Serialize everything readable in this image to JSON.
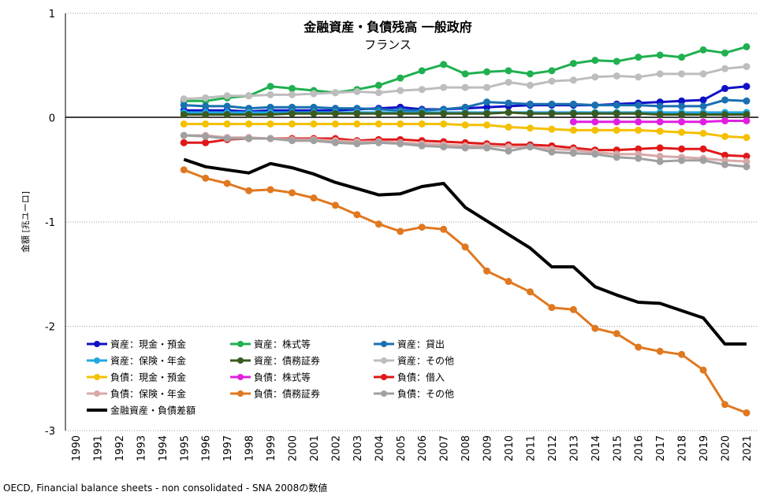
{
  "chart_data": {
    "type": "line",
    "title": "金融資産・負債残高 一般政府",
    "subtitle": "フランス",
    "ylabel": "金額 [兆ユーロ]",
    "xlabel": "",
    "source": "OECD, Financial balance sheets - non consolidated - SNA 2008の数値",
    "ylim": [
      -3,
      1
    ],
    "yticks": [
      1,
      0,
      -1,
      -2,
      -3
    ],
    "yticklabels": [
      "1",
      "0",
      "-1",
      "-2",
      "-3"
    ],
    "grid": true,
    "legend_position": "bottom-left",
    "x": [
      "1990",
      "1991",
      "1992",
      "1993",
      "1994",
      "1995",
      "1996",
      "1997",
      "1998",
      "1999",
      "2000",
      "2001",
      "2002",
      "2003",
      "2004",
      "2005",
      "2006",
      "2007",
      "2008",
      "2009",
      "2010",
      "2011",
      "2012",
      "2013",
      "2014",
      "2015",
      "2016",
      "2017",
      "2018",
      "2019",
      "2020",
      "2021"
    ],
    "series": [
      {
        "name": "資産：現金・預金",
        "color": "#1010c8",
        "width": 3,
        "marker": true,
        "values": [
          null,
          null,
          null,
          null,
          null,
          0.07,
          0.07,
          0.07,
          0.06,
          0.07,
          0.07,
          0.07,
          0.07,
          0.08,
          0.09,
          0.1,
          0.08,
          0.08,
          0.09,
          0.1,
          0.11,
          0.12,
          0.12,
          0.12,
          0.12,
          0.13,
          0.14,
          0.15,
          0.16,
          0.17,
          0.28,
          0.3
        ]
      },
      {
        "name": "資産：株式等",
        "color": "#20b050",
        "width": 3,
        "marker": true,
        "values": [
          null,
          null,
          null,
          null,
          null,
          0.16,
          0.16,
          0.19,
          0.21,
          0.3,
          0.28,
          0.26,
          0.24,
          0.27,
          0.31,
          0.38,
          0.45,
          0.51,
          0.42,
          0.44,
          0.45,
          0.42,
          0.45,
          0.52,
          0.55,
          0.54,
          0.58,
          0.6,
          0.58,
          0.65,
          0.62,
          0.68
        ]
      },
      {
        "name": "資産：貸出",
        "color": "#1a70b0",
        "width": 3,
        "marker": true,
        "values": [
          null,
          null,
          null,
          null,
          null,
          0.12,
          0.11,
          0.11,
          0.09,
          0.1,
          0.1,
          0.1,
          0.09,
          0.09,
          0.08,
          0.07,
          0.07,
          0.08,
          0.1,
          0.15,
          0.14,
          0.13,
          0.13,
          0.13,
          0.12,
          0.12,
          0.12,
          0.11,
          0.11,
          0.11,
          0.17,
          0.16
        ]
      },
      {
        "name": "資産：保険・年金",
        "color": "#20a8e0",
        "width": 3,
        "marker": true,
        "values": [
          null,
          null,
          null,
          null,
          null,
          0.05,
          0.05,
          0.05,
          0.05,
          0.05,
          0.05,
          0.05,
          0.05,
          0.05,
          0.05,
          0.05,
          0.05,
          0.05,
          0.05,
          0.05,
          0.05,
          0.05,
          0.05,
          0.05,
          0.05,
          0.05,
          0.05,
          0.05,
          0.05,
          0.05,
          0.05,
          0.05
        ]
      },
      {
        "name": "資産：債務証券",
        "color": "#3a5a20",
        "width": 3,
        "marker": true,
        "values": [
          null,
          null,
          null,
          null,
          null,
          0.03,
          0.03,
          0.03,
          0.03,
          0.03,
          0.04,
          0.04,
          0.04,
          0.04,
          0.04,
          0.04,
          0.04,
          0.04,
          0.04,
          0.04,
          0.05,
          0.04,
          0.04,
          0.04,
          0.04,
          0.04,
          0.04,
          0.03,
          0.03,
          0.03,
          0.03,
          0.03
        ]
      },
      {
        "name": "資産：その他",
        "color": "#bdbdbd",
        "width": 3,
        "marker": true,
        "values": [
          null,
          null,
          null,
          null,
          null,
          0.18,
          0.19,
          0.21,
          0.21,
          0.22,
          0.22,
          0.23,
          0.24,
          0.25,
          0.24,
          0.26,
          0.27,
          0.29,
          0.29,
          0.29,
          0.34,
          0.31,
          0.35,
          0.36,
          0.39,
          0.4,
          0.39,
          0.42,
          0.42,
          0.42,
          0.47,
          0.49
        ]
      },
      {
        "name": "負債：現金・預金",
        "color": "#f5c000",
        "width": 3,
        "marker": true,
        "values": [
          null,
          null,
          null,
          null,
          null,
          -0.06,
          -0.06,
          -0.06,
          -0.06,
          -0.06,
          -0.06,
          -0.06,
          -0.06,
          -0.06,
          -0.06,
          -0.06,
          -0.06,
          -0.06,
          -0.07,
          -0.07,
          -0.09,
          -0.1,
          -0.11,
          -0.12,
          -0.12,
          -0.12,
          -0.12,
          -0.13,
          -0.14,
          -0.15,
          -0.18,
          -0.19
        ]
      },
      {
        "name": "負債：株式等",
        "color": "#e020e0",
        "width": 3,
        "marker": true,
        "values": [
          null,
          null,
          null,
          null,
          null,
          null,
          null,
          null,
          null,
          null,
          null,
          null,
          null,
          null,
          null,
          null,
          null,
          null,
          null,
          null,
          null,
          null,
          null,
          -0.04,
          -0.04,
          -0.04,
          -0.04,
          -0.04,
          -0.04,
          -0.04,
          -0.03,
          -0.03
        ]
      },
      {
        "name": "負債：借入",
        "color": "#e01818",
        "width": 3,
        "marker": true,
        "values": [
          null,
          null,
          null,
          null,
          null,
          -0.24,
          -0.24,
          -0.21,
          -0.2,
          -0.2,
          -0.2,
          -0.2,
          -0.2,
          -0.22,
          -0.21,
          -0.21,
          -0.22,
          -0.23,
          -0.24,
          -0.25,
          -0.26,
          -0.26,
          -0.27,
          -0.29,
          -0.31,
          -0.31,
          -0.3,
          -0.29,
          -0.3,
          -0.3,
          -0.36,
          -0.37
        ]
      },
      {
        "name": "負債：保険・年金",
        "color": "#d8a8a8",
        "width": 3,
        "marker": true,
        "values": [
          null,
          null,
          null,
          null,
          null,
          -0.17,
          -0.17,
          -0.19,
          -0.19,
          -0.2,
          -0.21,
          -0.21,
          -0.22,
          -0.23,
          -0.23,
          -0.24,
          -0.25,
          -0.26,
          -0.27,
          -0.27,
          -0.28,
          -0.28,
          -0.3,
          -0.31,
          -0.33,
          -0.35,
          -0.35,
          -0.37,
          -0.38,
          -0.39,
          -0.41,
          -0.42
        ]
      },
      {
        "name": "負債：債務証券",
        "color": "#e07820",
        "width": 3,
        "marker": true,
        "values": [
          null,
          null,
          null,
          null,
          null,
          -0.5,
          -0.58,
          -0.63,
          -0.7,
          -0.69,
          -0.72,
          -0.77,
          -0.84,
          -0.93,
          -1.02,
          -1.09,
          -1.05,
          -1.07,
          -1.24,
          -1.47,
          -1.57,
          -1.67,
          -1.82,
          -1.84,
          -2.02,
          -2.07,
          -2.2,
          -2.24,
          -2.27,
          -2.42,
          -2.75,
          -2.83
        ]
      },
      {
        "name": "負債：その他",
        "color": "#a0a0a0",
        "width": 3,
        "marker": true,
        "values": [
          null,
          null,
          null,
          null,
          null,
          -0.17,
          -0.18,
          -0.2,
          -0.2,
          -0.2,
          -0.22,
          -0.22,
          -0.24,
          -0.25,
          -0.24,
          -0.25,
          -0.27,
          -0.28,
          -0.29,
          -0.29,
          -0.32,
          -0.28,
          -0.33,
          -0.34,
          -0.35,
          -0.38,
          -0.39,
          -0.42,
          -0.41,
          -0.41,
          -0.45,
          -0.47
        ]
      },
      {
        "name": "金融資産・負債差額",
        "color": "#000000",
        "width": 4,
        "marker": false,
        "values": [
          null,
          null,
          null,
          null,
          null,
          -0.4,
          -0.47,
          -0.5,
          -0.53,
          -0.44,
          -0.48,
          -0.54,
          -0.62,
          -0.68,
          -0.74,
          -0.73,
          -0.66,
          -0.63,
          -0.86,
          -0.99,
          -1.12,
          -1.25,
          -1.43,
          -1.43,
          -1.62,
          -1.7,
          -1.77,
          -1.78,
          -1.85,
          -1.92,
          -2.17,
          -2.17
        ]
      }
    ]
  }
}
